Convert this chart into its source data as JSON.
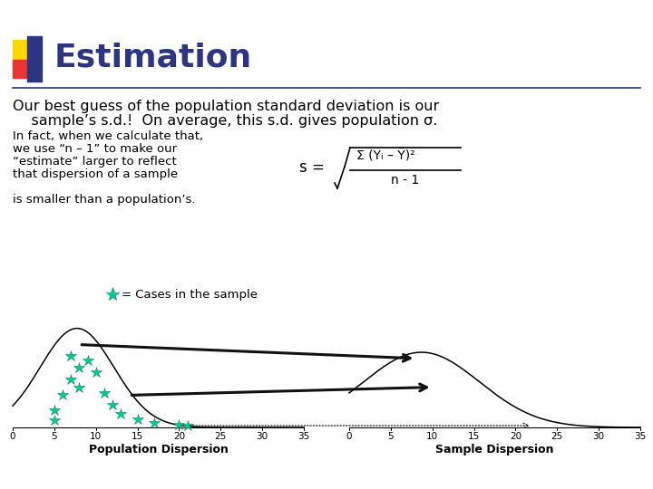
{
  "title": "Estimation",
  "title_color": "#2B3580",
  "bg_color": "#FFFFFF",
  "line1": "Our best guess of the population standard deviation is our",
  "line2": "    sample’s s.d.!  On average, this s.d. gives population σ.",
  "small_text1": "In fact, when we calculate that,",
  "small_text2": "we use “n – 1” to make our",
  "small_text3": "“estimate” larger to reflect",
  "small_text4": "that dispersion of a sample",
  "small_text5": "is smaller than a population’s.",
  "formula_num": "Σ (Yᵢ – Ÿ)²",
  "formula_den": "n - 1",
  "legend_text": "= Cases in the sample",
  "xlabel_pop": "Population Dispersion",
  "xlabel_sam": "Sample Dispersion",
  "xticks": [
    0,
    5,
    10,
    15,
    20,
    25,
    30,
    35
  ],
  "star_color": "#00CC99",
  "star_edge": "#008855",
  "yellow": "#FFD700",
  "red": "#EE3333",
  "blue": "#2B3580",
  "arrow_color": "#111111"
}
